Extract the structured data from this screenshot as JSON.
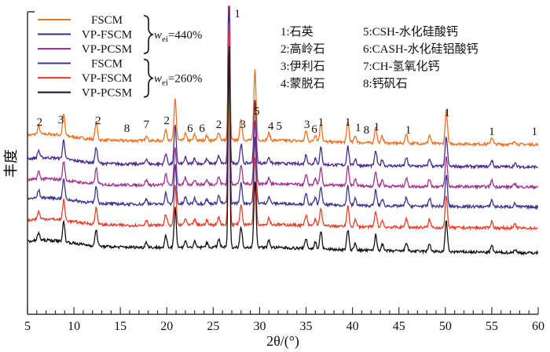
{
  "chart_data": {
    "type": "line",
    "title": "",
    "xlabel": "2θ/(°)",
    "ylabel": "丰度",
    "xlim": [
      5,
      60
    ],
    "xticks": [
      5,
      10,
      15,
      20,
      25,
      30,
      35,
      40,
      45,
      50,
      55,
      60
    ],
    "legend_position": "top-left",
    "groups": [
      {
        "label_w": "w",
        "label_sub": "ei",
        "label_val": "=440%"
      },
      {
        "label_w": "w",
        "label_sub": "ei",
        "label_val": "=260%"
      }
    ],
    "series": [
      {
        "name": "FSCM",
        "group": 0,
        "color": "#f07020",
        "base_left": 0.0,
        "base_right": -0.2,
        "scale": 1.0
      },
      {
        "name": "VP-FSCM",
        "group": 0,
        "color": "#4a2a8c",
        "base_left": -1.0,
        "base_right": -1.15,
        "scale": 0.9
      },
      {
        "name": "VP-PCSM",
        "group": 0,
        "color": "#a3308e",
        "base_left": -1.9,
        "base_right": -2.0,
        "scale": 0.9
      },
      {
        "name": "FSCM",
        "group": 1,
        "color": "#3a3590",
        "base_left": -2.7,
        "base_right": -2.85,
        "scale": 0.95
      },
      {
        "name": "VP-FSCM",
        "group": 1,
        "color": "#e8402a",
        "base_left": -3.6,
        "base_right": -3.75,
        "scale": 0.95
      },
      {
        "name": "VP-PCSM",
        "group": 1,
        "color": "#111111",
        "base_left": -4.5,
        "base_right": -4.8,
        "scale": 0.95
      }
    ],
    "peaks": [
      {
        "x": 6.2,
        "h": 0.35
      },
      {
        "x": 8.9,
        "h": 0.9
      },
      {
        "x": 12.4,
        "h": 0.75
      },
      {
        "x": 17.8,
        "h": 0.25
      },
      {
        "x": 19.9,
        "h": 0.5
      },
      {
        "x": 20.9,
        "h": 1.8
      },
      {
        "x": 22.0,
        "h": 0.3
      },
      {
        "x": 23.0,
        "h": 0.25
      },
      {
        "x": 24.3,
        "h": 0.2
      },
      {
        "x": 25.6,
        "h": 0.35
      },
      {
        "x": 26.7,
        "h": 9.0
      },
      {
        "x": 28.0,
        "h": 0.9
      },
      {
        "x": 29.5,
        "h": 3.0
      },
      {
        "x": 31.0,
        "h": 0.3
      },
      {
        "x": 35.0,
        "h": 0.45
      },
      {
        "x": 36.0,
        "h": 0.3
      },
      {
        "x": 36.6,
        "h": 0.8
      },
      {
        "x": 39.5,
        "h": 0.9
      },
      {
        "x": 40.3,
        "h": 0.3
      },
      {
        "x": 42.5,
        "h": 0.7
      },
      {
        "x": 43.2,
        "h": 0.3
      },
      {
        "x": 45.8,
        "h": 0.4
      },
      {
        "x": 48.3,
        "h": 0.35
      },
      {
        "x": 50.1,
        "h": 1.4
      },
      {
        "x": 55.0,
        "h": 0.3
      },
      {
        "x": 57.5,
        "h": 0.15
      }
    ],
    "peak_labels": [
      {
        "x": 6.3,
        "text": "2"
      },
      {
        "x": 8.6,
        "text": "3"
      },
      {
        "x": 12.6,
        "text": "2"
      },
      {
        "x": 15.7,
        "text": "8"
      },
      {
        "x": 17.8,
        "text": "7"
      },
      {
        "x": 20.0,
        "text": "2"
      },
      {
        "x": 22.5,
        "text": "6"
      },
      {
        "x": 23.8,
        "text": "6"
      },
      {
        "x": 25.6,
        "text": "2"
      },
      {
        "x": 27.6,
        "text": "1"
      },
      {
        "x": 28.2,
        "text": "3"
      },
      {
        "x": 29.7,
        "text": "5"
      },
      {
        "x": 31.2,
        "text": "4"
      },
      {
        "x": 32.1,
        "text": "5"
      },
      {
        "x": 35.1,
        "text": "3"
      },
      {
        "x": 35.9,
        "text": "6"
      },
      {
        "x": 36.6,
        "text": "1"
      },
      {
        "x": 39.5,
        "text": "1"
      },
      {
        "x": 40.6,
        "text": "1"
      },
      {
        "x": 41.5,
        "text": "8"
      },
      {
        "x": 42.6,
        "text": "1"
      },
      {
        "x": 46.0,
        "text": "1"
      },
      {
        "x": 50.2,
        "text": "1"
      },
      {
        "x": 55.0,
        "text": "1"
      },
      {
        "x": 59.6,
        "text": "1"
      }
    ],
    "phase_legend": [
      "1:石英",
      "2:高岭石",
      "3:伊利石",
      "4:蒙脱石",
      "5:CSH-水化硅酸钙",
      "6:CASH-水化硅铝酸钙",
      "7:CH-氢氧化钙",
      "8:钙矾石"
    ]
  }
}
